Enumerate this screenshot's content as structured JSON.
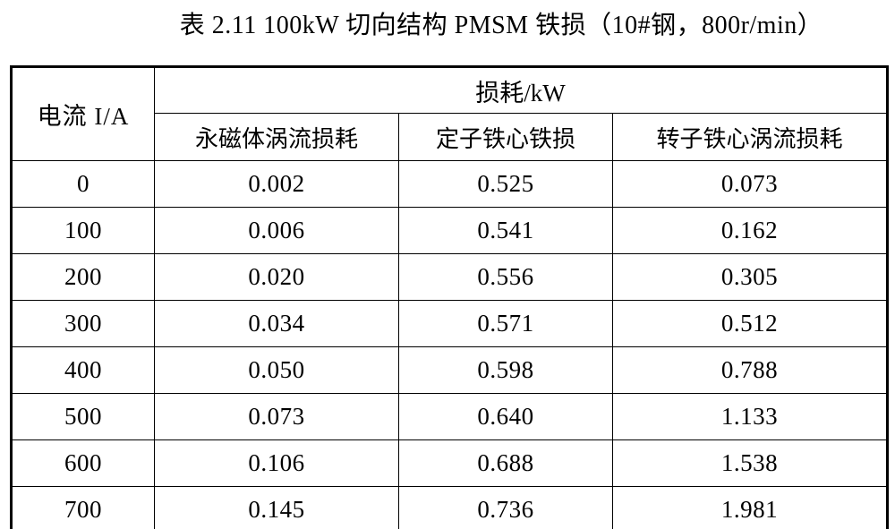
{
  "page": {
    "title": "表 2.11 100kW 切向结构 PMSM 铁损（10#钢，800r/min）"
  },
  "table": {
    "corner_header": "电流 I/A",
    "group_header": "损耗/kW",
    "sub_headers": [
      "永磁体涡流损耗",
      "定子铁心铁损",
      "转子铁心涡流损耗"
    ],
    "rows": [
      [
        "0",
        "0.002",
        "0.525",
        "0.073"
      ],
      [
        "100",
        "0.006",
        "0.541",
        "0.162"
      ],
      [
        "200",
        "0.020",
        "0.556",
        "0.305"
      ],
      [
        "300",
        "0.034",
        "0.571",
        "0.512"
      ],
      [
        "400",
        "0.050",
        "0.598",
        "0.788"
      ],
      [
        "500",
        "0.073",
        "0.640",
        "1.133"
      ],
      [
        "600",
        "0.106",
        "0.688",
        "1.538"
      ],
      [
        "700",
        "0.145",
        "0.736",
        "1.981"
      ]
    ]
  },
  "colors": {
    "text": "#000000",
    "border": "#000000",
    "background": "#ffffff"
  }
}
